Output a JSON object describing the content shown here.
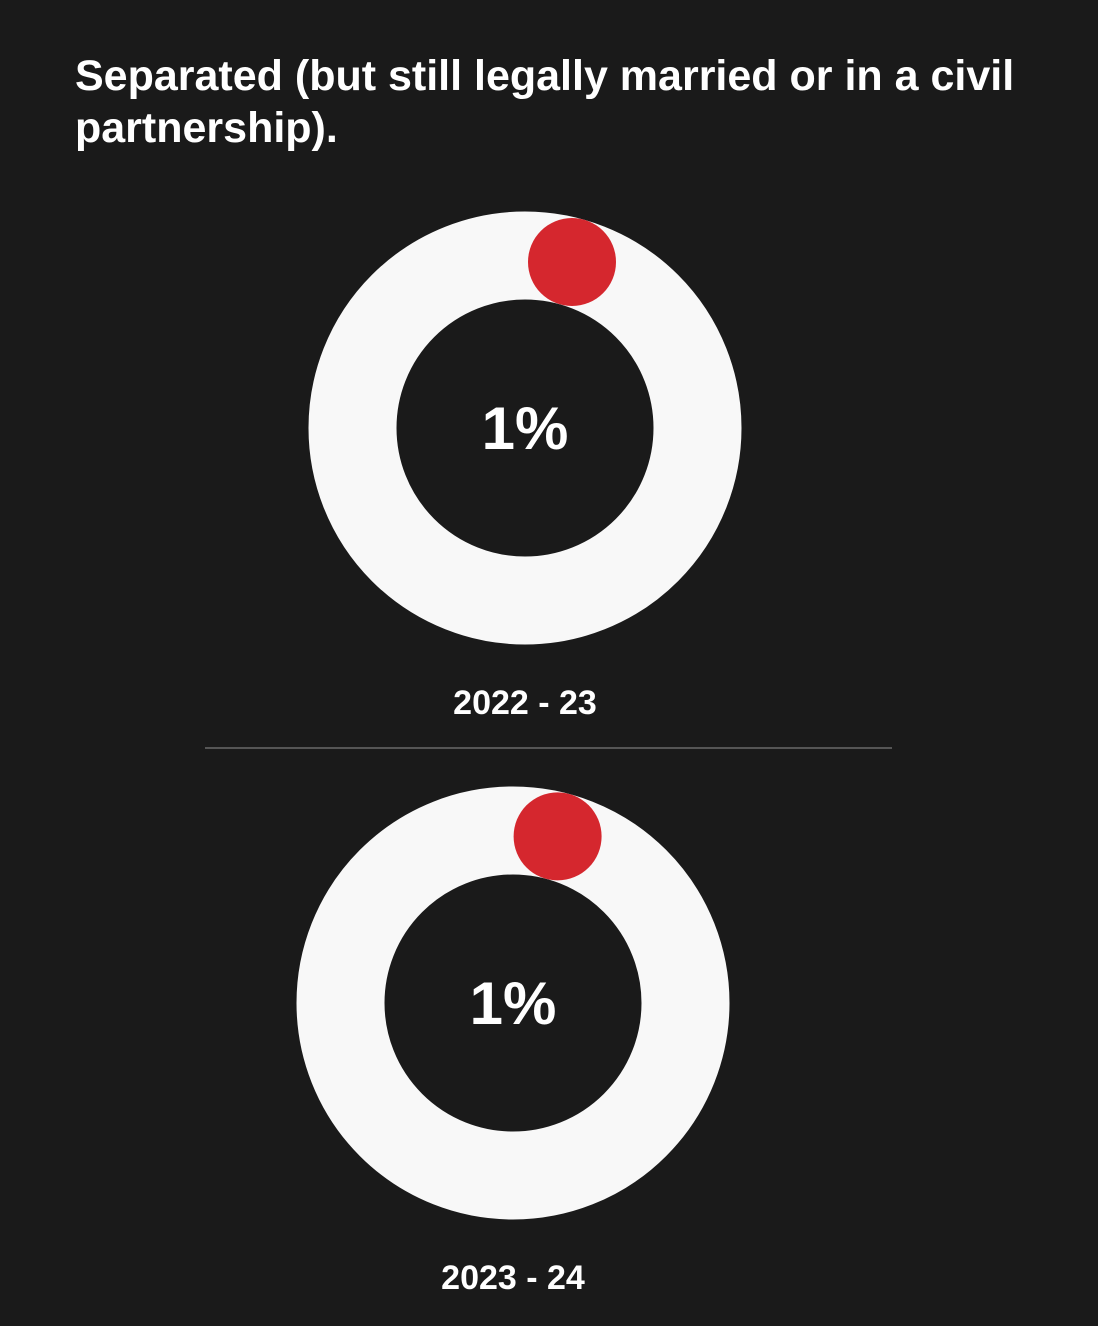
{
  "page": {
    "background": "#1a1a1a",
    "title": "Separated (but still legally married or in a civil partnership).",
    "text_color": "#ffffff",
    "divider_color": "#555555"
  },
  "chart_data": [
    {
      "type": "donut",
      "title": "Separated (but still legally married or in a civil partnership).",
      "category": "2022 - 23",
      "value_pct": 1,
      "value_label": "1%",
      "colors": {
        "ring": "#f8f8f8",
        "segment": "#d5272e",
        "hole": "#1a1a1a",
        "value_text": "#ffffff"
      },
      "layout_hints": {
        "legend": "none",
        "grid": false,
        "segment_style": "round-cap-dot",
        "marker_angle_deg": 15.8
      }
    },
    {
      "type": "donut",
      "title": "Separated (but still legally married or in a civil partnership).",
      "category": "2023 - 24",
      "value_pct": 1,
      "value_label": "1%",
      "colors": {
        "ring": "#f8f8f8",
        "segment": "#d5272e",
        "hole": "#1a1a1a",
        "value_text": "#ffffff"
      },
      "layout_hints": {
        "legend": "none",
        "grid": false,
        "segment_style": "round-cap-dot",
        "marker_angle_deg": 15.0
      }
    }
  ]
}
